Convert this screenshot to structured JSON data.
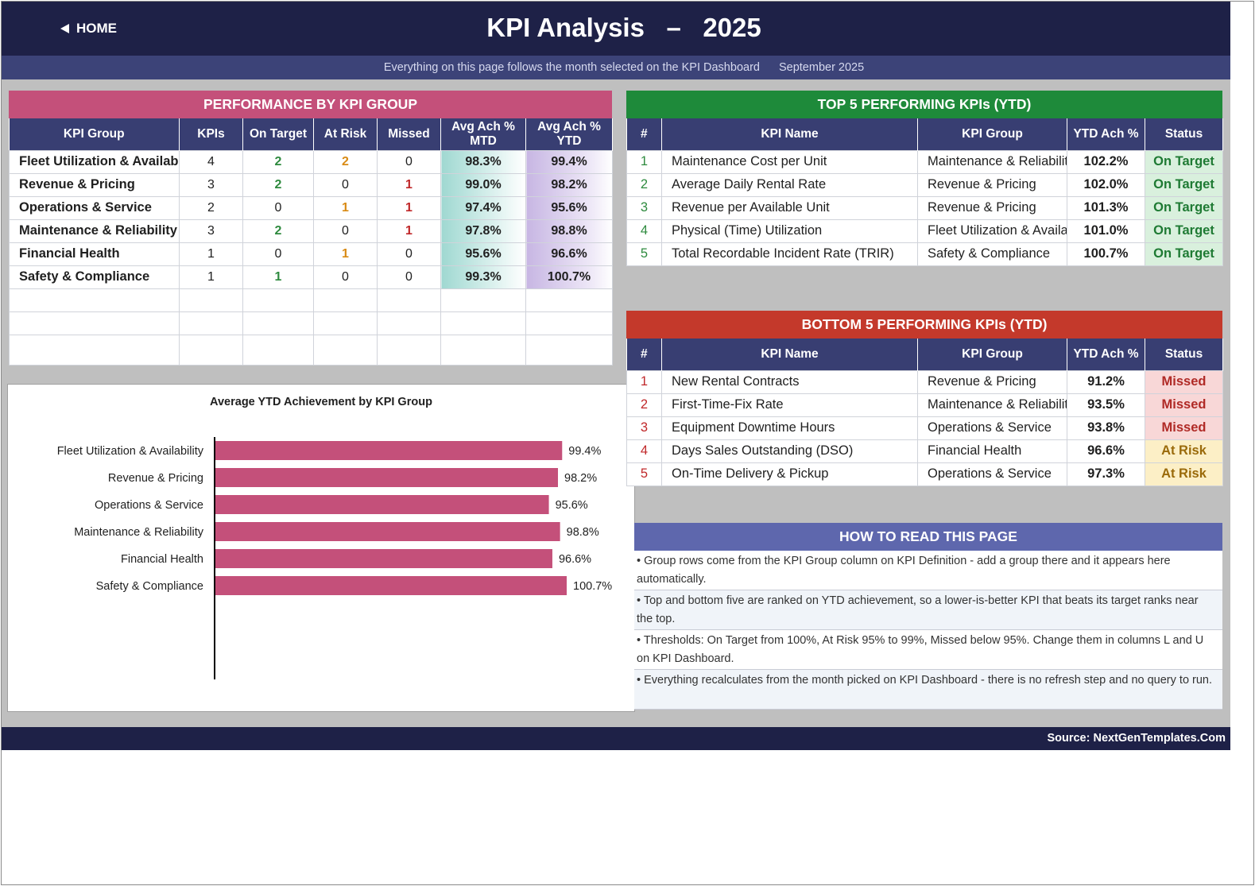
{
  "header": {
    "home_label": "HOME",
    "title": "KPI Analysis   –   2025"
  },
  "subbar": {
    "note": "Everything on this page follows the month selected on the KPI Dashboard",
    "month": "September 2025"
  },
  "performance": {
    "banner": "PERFORMANCE BY KPI GROUP",
    "columns": [
      "KPI Group",
      "KPIs",
      "On Target",
      "At Risk",
      "Missed",
      "Avg Ach % MTD",
      "Avg Ach % YTD"
    ],
    "rows": [
      {
        "group": "Fleet Utilization & Availability",
        "kpis": "4",
        "on_target": "2",
        "at_risk": "2",
        "missed": "0",
        "mtd": "98.3%",
        "ytd": "99.4%"
      },
      {
        "group": "Revenue & Pricing",
        "kpis": "3",
        "on_target": "2",
        "at_risk": "0",
        "missed": "1",
        "mtd": "99.0%",
        "ytd": "98.2%"
      },
      {
        "group": "Operations & Service",
        "kpis": "2",
        "on_target": "0",
        "at_risk": "1",
        "missed": "1",
        "mtd": "97.4%",
        "ytd": "95.6%"
      },
      {
        "group": "Maintenance & Reliability",
        "kpis": "3",
        "on_target": "2",
        "at_risk": "0",
        "missed": "1",
        "mtd": "97.8%",
        "ytd": "98.8%"
      },
      {
        "group": "Financial Health",
        "kpis": "1",
        "on_target": "0",
        "at_risk": "1",
        "missed": "0",
        "mtd": "95.6%",
        "ytd": "96.6%"
      },
      {
        "group": "Safety & Compliance",
        "kpis": "1",
        "on_target": "1",
        "at_risk": "0",
        "missed": "0",
        "mtd": "99.3%",
        "ytd": "100.7%"
      }
    ]
  },
  "chart_data": {
    "type": "bar",
    "orientation": "horizontal",
    "title": "Average YTD Achievement by KPI Group",
    "categories": [
      "Fleet Utilization & Availability",
      "Revenue & Pricing",
      "Operations & Service",
      "Maintenance & Reliability",
      "Financial Health",
      "Safety & Compliance"
    ],
    "values": [
      99.4,
      98.2,
      95.6,
      98.8,
      96.6,
      100.7
    ],
    "value_labels": [
      "99.4%",
      "98.2%",
      "95.6%",
      "98.8%",
      "96.6%",
      "100.7%"
    ],
    "xlim": [
      0,
      100.7
    ],
    "bar_color": "#c4507a",
    "grid": false,
    "legend": "none"
  },
  "top5": {
    "banner": "TOP 5 PERFORMING KPIs  (YTD)",
    "columns": [
      "#",
      "KPI Name",
      "KPI Group",
      "YTD Ach %",
      "Status"
    ],
    "rows": [
      {
        "rank": "1",
        "name": "Maintenance Cost per Unit",
        "group": "Maintenance & Reliability",
        "ach": "102.2%",
        "status": "On Target"
      },
      {
        "rank": "2",
        "name": "Average Daily Rental Rate",
        "group": "Revenue & Pricing",
        "ach": "102.0%",
        "status": "On Target"
      },
      {
        "rank": "3",
        "name": "Revenue per Available Unit",
        "group": "Revenue & Pricing",
        "ach": "101.3%",
        "status": "On Target"
      },
      {
        "rank": "4",
        "name": "Physical (Time) Utilization",
        "group": "Fleet Utilization & Availability",
        "ach": "101.0%",
        "status": "On Target"
      },
      {
        "rank": "5",
        "name": "Total Recordable Incident Rate (TRIR)",
        "group": "Safety & Compliance",
        "ach": "100.7%",
        "status": "On Target"
      }
    ]
  },
  "bottom5": {
    "banner": "BOTTOM 5 PERFORMING KPIs  (YTD)",
    "columns": [
      "#",
      "KPI Name",
      "KPI Group",
      "YTD Ach %",
      "Status"
    ],
    "rows": [
      {
        "rank": "1",
        "name": "New Rental Contracts",
        "group": "Revenue & Pricing",
        "ach": "91.2%",
        "status": "Missed"
      },
      {
        "rank": "2",
        "name": "First-Time-Fix Rate",
        "group": "Maintenance & Reliability",
        "ach": "93.5%",
        "status": "Missed"
      },
      {
        "rank": "3",
        "name": "Equipment Downtime Hours",
        "group": "Operations & Service",
        "ach": "93.8%",
        "status": "Missed"
      },
      {
        "rank": "4",
        "name": "Days Sales Outstanding (DSO)",
        "group": "Financial Health",
        "ach": "96.6%",
        "status": "At Risk"
      },
      {
        "rank": "5",
        "name": "On-Time Delivery & Pickup",
        "group": "Operations & Service",
        "ach": "97.3%",
        "status": "At Risk"
      }
    ]
  },
  "how_to_read": {
    "banner": "HOW TO READ THIS PAGE",
    "items": [
      "•  Group rows come from the KPI Group column on KPI Definition - add a group there and it appears here automatically.",
      "•  Top and bottom five are ranked on YTD achievement, so a lower-is-better KPI that beats its target ranks near the top.",
      "•  Thresholds: On Target from 100%, At Risk 95% to 99%, Missed below 95%. Change them in columns L and U on KPI Dashboard.",
      "•  Everything recalculates from the month picked on KPI Dashboard - there is no refresh step and no query to run."
    ]
  },
  "footer": {
    "source": "Source: NextGenTemplates.Com"
  }
}
